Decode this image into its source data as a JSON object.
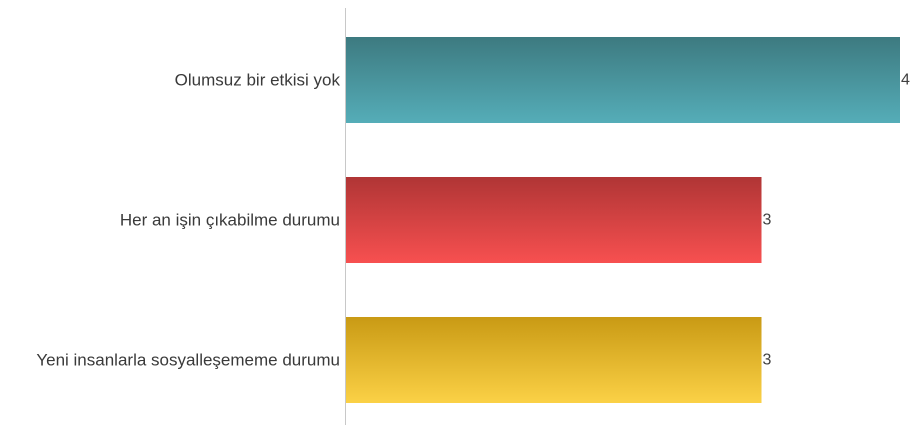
{
  "chart_data": {
    "type": "bar",
    "orientation": "horizontal",
    "categories": [
      "Olumsuz bir etkisi yok",
      "Her an işin çıkabilme durumu",
      "Yeni insanlarla sosyalleşememe durumu"
    ],
    "values": [
      4,
      3,
      3
    ],
    "xlim": [
      0,
      4
    ],
    "grid": false,
    "legend": "none",
    "colors": [
      {
        "top": "#3d7a80",
        "bottom": "#55adb8"
      },
      {
        "top": "#b03535",
        "bottom": "#f75050"
      },
      {
        "top": "#c99a14",
        "bottom": "#fbd146"
      }
    ]
  }
}
